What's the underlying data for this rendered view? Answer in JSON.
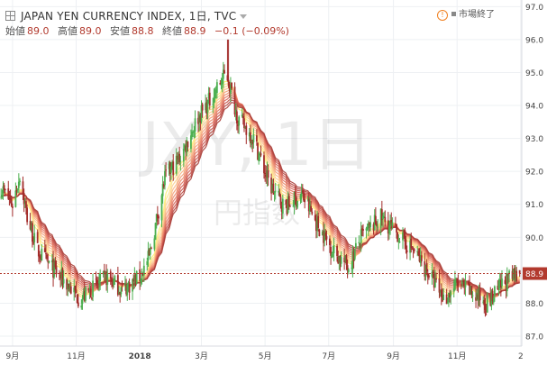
{
  "header": {
    "title": "JAPAN YEN CURRENCY INDEX, 1日, TVC",
    "ohlc": [
      {
        "key": "始値",
        "value": "89.0"
      },
      {
        "key": "高値",
        "value": "89.0"
      },
      {
        "key": "安値",
        "value": "88.8"
      },
      {
        "key": "終値",
        "value": "88.9"
      }
    ],
    "change": "−0.1 (−0.09%)",
    "status": "市場終了",
    "warn_symbol": "!"
  },
  "watermark": {
    "symbol": "JXY, 1日",
    "subtitle": "円指数"
  },
  "colors": {
    "up": "#4caf50",
    "down": "#a32c2a",
    "ribbon": [
      "#fff176",
      "#ffe08a",
      "#fdd090",
      "#f9b985",
      "#f4a078",
      "#ec8a6a",
      "#e27560",
      "#d66355",
      "#c8534b",
      "#b8473f",
      "#a83d37"
    ],
    "last_price_line": "#b23a2e",
    "grid": "#eef0f3"
  },
  "chart_data": {
    "type": "candlestick",
    "y_axis": {
      "min": 86.7,
      "max": 97.2,
      "ticks": [
        "87.0",
        "88.0",
        "89.0",
        "90.0",
        "91.0",
        "92.0",
        "93.0",
        "94.0",
        "95.0",
        "96.0",
        "97.0"
      ]
    },
    "x_axis": {
      "start": "2017-08-20",
      "end": "2019-01-02",
      "ticks": [
        {
          "label": "9月",
          "date": "2017-09-01"
        },
        {
          "label": "11月",
          "date": "2017-11-01"
        },
        {
          "label": "2018",
          "date": "2018-01-01",
          "bold": true
        },
        {
          "label": "3月",
          "date": "2018-03-01"
        },
        {
          "label": "5月",
          "date": "2018-05-01"
        },
        {
          "label": "7月",
          "date": "2018-07-01"
        },
        {
          "label": "9月",
          "date": "2018-09-01"
        },
        {
          "label": "11月",
          "date": "2018-11-01"
        },
        {
          "label": "2",
          "date": "2019-01-01"
        }
      ]
    },
    "last_price": "88.9",
    "price_path": [
      {
        "date": "2017-08-21",
        "close": 91.5
      },
      {
        "date": "2017-09-01",
        "close": 91.0
      },
      {
        "date": "2017-09-08",
        "close": 91.9
      },
      {
        "date": "2017-09-15",
        "close": 90.6
      },
      {
        "date": "2017-09-25",
        "close": 89.6
      },
      {
        "date": "2017-10-05",
        "close": 89.2
      },
      {
        "date": "2017-10-20",
        "close": 88.7
      },
      {
        "date": "2017-11-05",
        "close": 88.1
      },
      {
        "date": "2017-11-15",
        "close": 88.4
      },
      {
        "date": "2017-12-01",
        "close": 88.8
      },
      {
        "date": "2017-12-15",
        "close": 88.4
      },
      {
        "date": "2018-01-01",
        "close": 88.8
      },
      {
        "date": "2018-01-10",
        "close": 89.4
      },
      {
        "date": "2018-01-25",
        "close": 91.8
      },
      {
        "date": "2018-02-10",
        "close": 92.5
      },
      {
        "date": "2018-02-25",
        "close": 93.6
      },
      {
        "date": "2018-03-10",
        "close": 94.2
      },
      {
        "date": "2018-03-25",
        "close": 95.0
      },
      {
        "date": "2018-04-05",
        "close": 93.6
      },
      {
        "date": "2018-04-20",
        "close": 93.0
      },
      {
        "date": "2018-05-05",
        "close": 91.6
      },
      {
        "date": "2018-05-20",
        "close": 90.9
      },
      {
        "date": "2018-06-05",
        "close": 91.3
      },
      {
        "date": "2018-06-20",
        "close": 90.4
      },
      {
        "date": "2018-07-05",
        "close": 89.6
      },
      {
        "date": "2018-07-20",
        "close": 89.1
      },
      {
        "date": "2018-08-01",
        "close": 90.0
      },
      {
        "date": "2018-08-20",
        "close": 90.6
      },
      {
        "date": "2018-09-05",
        "close": 90.1
      },
      {
        "date": "2018-09-20",
        "close": 89.6
      },
      {
        "date": "2018-10-05",
        "close": 88.9
      },
      {
        "date": "2018-10-20",
        "close": 88.1
      },
      {
        "date": "2018-11-01",
        "close": 88.6
      },
      {
        "date": "2018-11-15",
        "close": 88.3
      },
      {
        "date": "2018-12-01",
        "close": 88.0
      },
      {
        "date": "2018-12-15",
        "close": 88.6
      },
      {
        "date": "2018-12-31",
        "close": 88.9
      }
    ]
  }
}
